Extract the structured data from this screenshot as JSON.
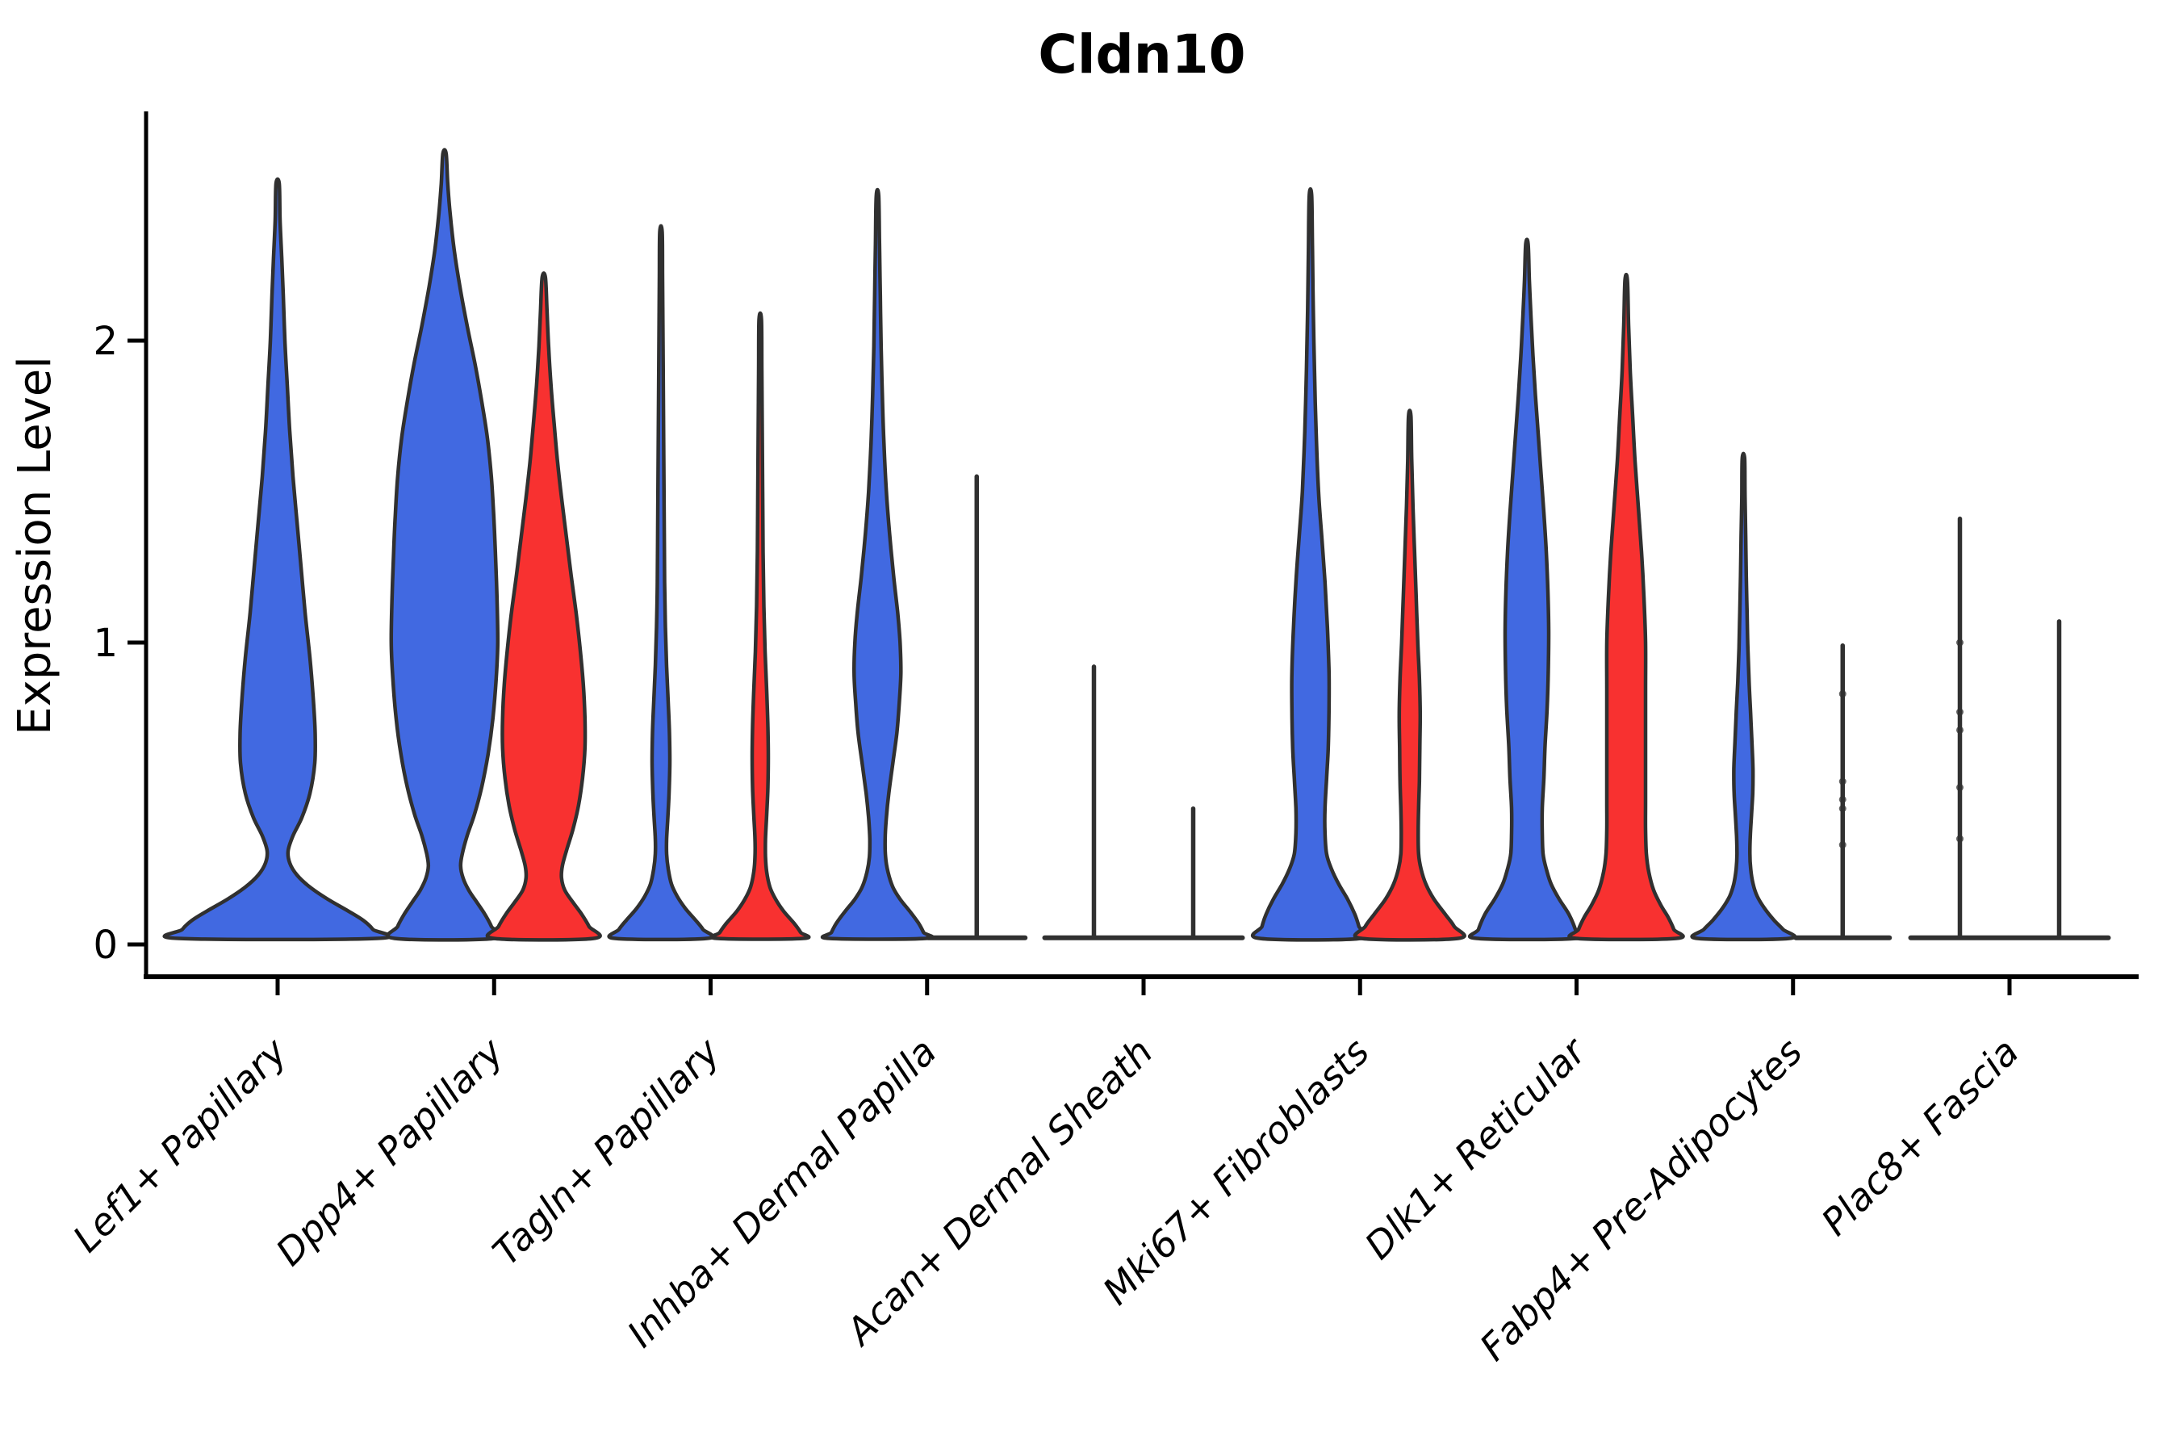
{
  "chart_data": {
    "type": "violin",
    "title": "Cldn10",
    "ylabel": "Expression Level",
    "xlabel": "",
    "yticks": [
      "0",
      "1",
      "2"
    ],
    "ytick_values": [
      0,
      1,
      2
    ],
    "ylim": [
      -0.1,
      2.76
    ],
    "grid": false,
    "legend": "none",
    "categories": [
      "Lef1+ Papillary",
      "Dpp4+ Papillary",
      "Tagln+ Papillary",
      "Inhba+ Dermal Papilla",
      "Acan+ Dermal Sheath",
      "Mki67+ Fibroblasts",
      "Dlk1+ Reticular",
      "Fabp4+ Pre-Adipocytes",
      "Plac8+ Fascia"
    ],
    "groups": [
      {
        "id": "blue",
        "color": "#4169E1"
      },
      {
        "id": "red",
        "color": "#F83130"
      }
    ],
    "outline_color": "#303030",
    "axis_color": "#000000",
    "violins": [
      {
        "category": 0,
        "group": "blue",
        "centered": true,
        "shape": "violin",
        "max_expression": 2.52,
        "profile": [
          [
            2.52,
            2
          ],
          [
            2.4,
            3
          ],
          [
            2.28,
            5
          ],
          [
            2.15,
            7
          ],
          [
            2.0,
            9
          ],
          [
            1.85,
            12
          ],
          [
            1.7,
            15
          ],
          [
            1.55,
            19
          ],
          [
            1.4,
            24
          ],
          [
            1.25,
            29
          ],
          [
            1.1,
            34
          ],
          [
            0.95,
            40
          ],
          [
            0.82,
            44
          ],
          [
            0.7,
            46.5
          ],
          [
            0.6,
            46
          ],
          [
            0.5,
            40
          ],
          [
            0.42,
            30
          ],
          [
            0.36,
            19
          ],
          [
            0.31,
            13
          ],
          [
            0.27,
            15
          ],
          [
            0.23,
            24
          ],
          [
            0.19,
            40
          ],
          [
            0.15,
            62
          ],
          [
            0.11,
            88
          ],
          [
            0.08,
            106
          ],
          [
            0.05,
            118
          ],
          [
            0.02,
            123
          ]
        ]
      },
      {
        "category": 1,
        "group": "blue",
        "shape": "violin",
        "max_expression": 2.62,
        "profile": [
          [
            2.62,
            2
          ],
          [
            2.52,
            4
          ],
          [
            2.42,
            7
          ],
          [
            2.3,
            12
          ],
          [
            2.18,
            19
          ],
          [
            2.05,
            28
          ],
          [
            1.92,
            38
          ],
          [
            1.8,
            46
          ],
          [
            1.68,
            53
          ],
          [
            1.55,
            58
          ],
          [
            1.42,
            61
          ],
          [
            1.3,
            63
          ],
          [
            1.15,
            65
          ],
          [
            1.0,
            66
          ],
          [
            0.88,
            64
          ],
          [
            0.75,
            60
          ],
          [
            0.63,
            54
          ],
          [
            0.52,
            46
          ],
          [
            0.43,
            37
          ],
          [
            0.36,
            28
          ],
          [
            0.3,
            22
          ],
          [
            0.26,
            20
          ],
          [
            0.22,
            23
          ],
          [
            0.18,
            30
          ],
          [
            0.14,
            40
          ],
          [
            0.1,
            50
          ],
          [
            0.06,
            58
          ],
          [
            0.02,
            62
          ]
        ]
      },
      {
        "category": 1,
        "group": "red",
        "shape": "violin",
        "max_expression": 2.21,
        "profile": [
          [
            2.21,
            2
          ],
          [
            2.1,
            4
          ],
          [
            1.98,
            6
          ],
          [
            1.85,
            9
          ],
          [
            1.72,
            13
          ],
          [
            1.6,
            17
          ],
          [
            1.48,
            22
          ],
          [
            1.35,
            28
          ],
          [
            1.22,
            34
          ],
          [
            1.1,
            40
          ],
          [
            0.98,
            45
          ],
          [
            0.86,
            49
          ],
          [
            0.75,
            51
          ],
          [
            0.65,
            51
          ],
          [
            0.55,
            48
          ],
          [
            0.46,
            43
          ],
          [
            0.38,
            36
          ],
          [
            0.31,
            28
          ],
          [
            0.26,
            23
          ],
          [
            0.22,
            22
          ],
          [
            0.18,
            26
          ],
          [
            0.14,
            36
          ],
          [
            0.1,
            47
          ],
          [
            0.06,
            56
          ],
          [
            0.02,
            62
          ]
        ]
      },
      {
        "category": 2,
        "group": "blue",
        "shape": "violin",
        "max_expression": 2.36,
        "profile": [
          [
            2.36,
            1.5
          ],
          [
            2.2,
            2
          ],
          [
            2.0,
            2.5
          ],
          [
            1.8,
            3
          ],
          [
            1.6,
            3.5
          ],
          [
            1.4,
            4
          ],
          [
            1.2,
            4.5
          ],
          [
            1.05,
            5.5
          ],
          [
            0.92,
            7
          ],
          [
            0.8,
            9
          ],
          [
            0.7,
            10.5
          ],
          [
            0.6,
            11
          ],
          [
            0.5,
            10
          ],
          [
            0.42,
            8.5
          ],
          [
            0.35,
            7
          ],
          [
            0.3,
            7
          ],
          [
            0.25,
            9
          ],
          [
            0.2,
            13
          ],
          [
            0.16,
            20
          ],
          [
            0.12,
            30
          ],
          [
            0.08,
            43
          ],
          [
            0.05,
            52
          ],
          [
            0.02,
            57
          ]
        ]
      },
      {
        "category": 2,
        "group": "red",
        "shape": "violin",
        "max_expression": 2.07,
        "profile": [
          [
            2.07,
            1.5
          ],
          [
            1.9,
            2
          ],
          [
            1.7,
            2.5
          ],
          [
            1.5,
            3
          ],
          [
            1.3,
            3.5
          ],
          [
            1.12,
            4.5
          ],
          [
            0.97,
            6
          ],
          [
            0.84,
            8
          ],
          [
            0.72,
            9.5
          ],
          [
            0.62,
            10
          ],
          [
            0.52,
            9.5
          ],
          [
            0.43,
            8
          ],
          [
            0.35,
            6.5
          ],
          [
            0.29,
            6.5
          ],
          [
            0.24,
            8
          ],
          [
            0.19,
            12
          ],
          [
            0.15,
            19
          ],
          [
            0.11,
            29
          ],
          [
            0.07,
            42
          ],
          [
            0.04,
            50
          ],
          [
            0.02,
            53
          ]
        ]
      },
      {
        "category": 3,
        "group": "blue",
        "shape": "violin",
        "max_expression": 2.48,
        "profile": [
          [
            2.48,
            1.5
          ],
          [
            2.32,
            2.5
          ],
          [
            2.15,
            3.5
          ],
          [
            1.98,
            4.5
          ],
          [
            1.82,
            6
          ],
          [
            1.66,
            8
          ],
          [
            1.5,
            11
          ],
          [
            1.36,
            15
          ],
          [
            1.22,
            20
          ],
          [
            1.1,
            25
          ],
          [
            1.0,
            28
          ],
          [
            0.9,
            29
          ],
          [
            0.8,
            27
          ],
          [
            0.7,
            24
          ],
          [
            0.6,
            19
          ],
          [
            0.5,
            14
          ],
          [
            0.42,
            11
          ],
          [
            0.35,
            9.5
          ],
          [
            0.29,
            10
          ],
          [
            0.24,
            13
          ],
          [
            0.19,
            19
          ],
          [
            0.15,
            28
          ],
          [
            0.11,
            40
          ],
          [
            0.07,
            51
          ],
          [
            0.04,
            57
          ],
          [
            0.02,
            60
          ]
        ]
      },
      {
        "category": 3,
        "group": "red",
        "shape": "line",
        "max_expression": 1.55,
        "base_halfwidth": 60,
        "dots": []
      },
      {
        "category": 4,
        "group": "blue",
        "shape": "line",
        "max_expression": 0.92,
        "base_halfwidth": 61,
        "dots": []
      },
      {
        "category": 4,
        "group": "red",
        "shape": "line",
        "max_expression": 0.45,
        "base_halfwidth": 61,
        "dots": []
      },
      {
        "category": 5,
        "group": "blue",
        "shape": "violin",
        "max_expression": 2.48,
        "profile": [
          [
            2.48,
            1.5
          ],
          [
            2.3,
            2.5
          ],
          [
            2.1,
            3.5
          ],
          [
            1.9,
            5
          ],
          [
            1.7,
            7
          ],
          [
            1.5,
            10
          ],
          [
            1.35,
            14
          ],
          [
            1.2,
            18
          ],
          [
            1.05,
            21
          ],
          [
            0.9,
            23
          ],
          [
            0.78,
            23
          ],
          [
            0.65,
            22
          ],
          [
            0.55,
            20
          ],
          [
            0.45,
            18
          ],
          [
            0.37,
            18
          ],
          [
            0.3,
            20
          ],
          [
            0.25,
            26
          ],
          [
            0.2,
            35
          ],
          [
            0.15,
            46
          ],
          [
            0.1,
            55
          ],
          [
            0.06,
            60
          ],
          [
            0.02,
            63
          ]
        ]
      },
      {
        "category": 5,
        "group": "red",
        "shape": "violin",
        "max_expression": 1.75,
        "profile": [
          [
            1.75,
            1.5
          ],
          [
            1.6,
            2.5
          ],
          [
            1.45,
            4
          ],
          [
            1.3,
            6
          ],
          [
            1.15,
            8
          ],
          [
            1.0,
            10
          ],
          [
            0.88,
            12
          ],
          [
            0.76,
            13
          ],
          [
            0.65,
            12.5
          ],
          [
            0.54,
            12
          ],
          [
            0.45,
            11
          ],
          [
            0.37,
            10.5
          ],
          [
            0.3,
            11
          ],
          [
            0.25,
            14
          ],
          [
            0.2,
            20
          ],
          [
            0.15,
            30
          ],
          [
            0.1,
            44
          ],
          [
            0.06,
            55
          ],
          [
            0.02,
            60
          ]
        ]
      },
      {
        "category": 6,
        "group": "blue",
        "shape": "violin",
        "max_expression": 2.32,
        "profile": [
          [
            2.32,
            1.5
          ],
          [
            2.2,
            3
          ],
          [
            2.08,
            5
          ],
          [
            1.95,
            7.5
          ],
          [
            1.82,
            10.5
          ],
          [
            1.69,
            14
          ],
          [
            1.56,
            17.5
          ],
          [
            1.43,
            21
          ],
          [
            1.3,
            24
          ],
          [
            1.17,
            26
          ],
          [
            1.04,
            27
          ],
          [
            0.91,
            26.5
          ],
          [
            0.78,
            25
          ],
          [
            0.66,
            22.5
          ],
          [
            0.55,
            21
          ],
          [
            0.45,
            19
          ],
          [
            0.37,
            19
          ],
          [
            0.3,
            20
          ],
          [
            0.25,
            24
          ],
          [
            0.2,
            30
          ],
          [
            0.15,
            40
          ],
          [
            0.1,
            52
          ],
          [
            0.05,
            60
          ],
          [
            0.02,
            62
          ]
        ]
      },
      {
        "category": 6,
        "group": "red",
        "shape": "violin",
        "max_expression": 2.2,
        "profile": [
          [
            2.2,
            1.5
          ],
          [
            2.05,
            3
          ],
          [
            1.9,
            5
          ],
          [
            1.75,
            8
          ],
          [
            1.6,
            11
          ],
          [
            1.45,
            15
          ],
          [
            1.3,
            19
          ],
          [
            1.15,
            22
          ],
          [
            1.0,
            24
          ],
          [
            0.85,
            24
          ],
          [
            0.7,
            24
          ],
          [
            0.58,
            24
          ],
          [
            0.47,
            24
          ],
          [
            0.38,
            24
          ],
          [
            0.3,
            25
          ],
          [
            0.24,
            28
          ],
          [
            0.18,
            34
          ],
          [
            0.13,
            43
          ],
          [
            0.09,
            52
          ],
          [
            0.05,
            59
          ],
          [
            0.02,
            62
          ]
        ]
      },
      {
        "category": 7,
        "group": "blue",
        "shape": "violin",
        "max_expression": 1.61,
        "profile": [
          [
            1.61,
            1.5
          ],
          [
            1.48,
            2
          ],
          [
            1.35,
            2.8
          ],
          [
            1.22,
            3.6
          ],
          [
            1.1,
            4.5
          ],
          [
            0.98,
            5.5
          ],
          [
            0.87,
            7
          ],
          [
            0.77,
            8.8
          ],
          [
            0.67,
            10.5
          ],
          [
            0.58,
            11.8
          ],
          [
            0.5,
            11.5
          ],
          [
            0.43,
            10
          ],
          [
            0.36,
            8.5
          ],
          [
            0.3,
            8
          ],
          [
            0.25,
            9
          ],
          [
            0.2,
            12
          ],
          [
            0.16,
            17
          ],
          [
            0.12,
            26
          ],
          [
            0.08,
            38
          ],
          [
            0.05,
            49
          ],
          [
            0.02,
            57
          ]
        ]
      },
      {
        "category": 7,
        "group": "red",
        "shape": "line",
        "max_expression": 0.99,
        "base_halfwidth": 58,
        "dots": [
          0.83,
          0.54,
          0.48,
          0.45,
          0.33
        ]
      },
      {
        "category": 8,
        "group": "blue",
        "shape": "line",
        "max_expression": 1.41,
        "base_halfwidth": 61,
        "dots": [
          1.0,
          0.77,
          0.71,
          0.52,
          0.35
        ]
      },
      {
        "category": 8,
        "group": "red",
        "shape": "line",
        "max_expression": 1.07,
        "base_halfwidth": 61,
        "dots": []
      }
    ]
  }
}
